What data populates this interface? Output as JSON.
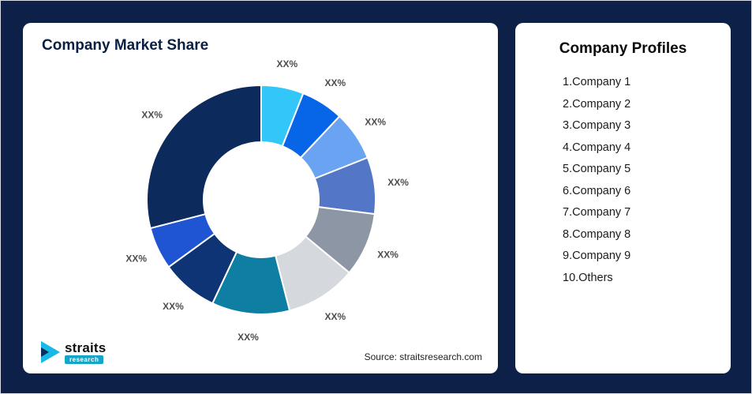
{
  "left_card": {
    "title": "Company Market Share",
    "source": "Source: straitsresearch.com",
    "logo": {
      "name": "straits",
      "sub": "research",
      "icon": "straits-arrow-icon",
      "icon_color_primary": "#18B9E9",
      "icon_color_secondary": "#0E2F5A"
    }
  },
  "profiles": {
    "title": "Company Profiles",
    "items": [
      "1.Company 1",
      "2.Company 2",
      "3.Company 3",
      "4.Company 4",
      "5.Company 5",
      "6.Company 6",
      "7.Company 7",
      "8.Company 8",
      "9.Company 9",
      "10.Others"
    ]
  },
  "chart_data": {
    "type": "pie",
    "subtype": "donut",
    "title": "Company Market Share",
    "legend_position": "none",
    "labels_shown_as": "XX% placeholders (no numeric values printed on chart)",
    "segments": [
      {
        "name": "Company 1",
        "label": "XX%",
        "value_est_pct": 6,
        "color": "#33C6F9"
      },
      {
        "name": "Company 2",
        "label": "XX%",
        "value_est_pct": 6,
        "color": "#0766E8"
      },
      {
        "name": "Company 3",
        "label": "XX%",
        "value_est_pct": 7,
        "color": "#6AA3F2"
      },
      {
        "name": "Company 4",
        "label": "XX%",
        "value_est_pct": 8,
        "color": "#5377C6"
      },
      {
        "name": "Company 5",
        "label": "XX%",
        "value_est_pct": 9,
        "color": "#8C96A4"
      },
      {
        "name": "Company 6",
        "label": "XX%",
        "value_est_pct": 10,
        "color": "#D5D8DC"
      },
      {
        "name": "Company 7",
        "label": "XX%",
        "value_est_pct": 11,
        "color": "#0E7FA3"
      },
      {
        "name": "Company 8",
        "label": "XX%",
        "value_est_pct": 8,
        "color": "#0E3476"
      },
      {
        "name": "Company 9",
        "label": "XX%",
        "value_est_pct": 6,
        "color": "#1F55D2"
      },
      {
        "name": "Others",
        "label": "XX%",
        "value_est_pct": 29,
        "color": "#0C2A5C"
      }
    ]
  }
}
